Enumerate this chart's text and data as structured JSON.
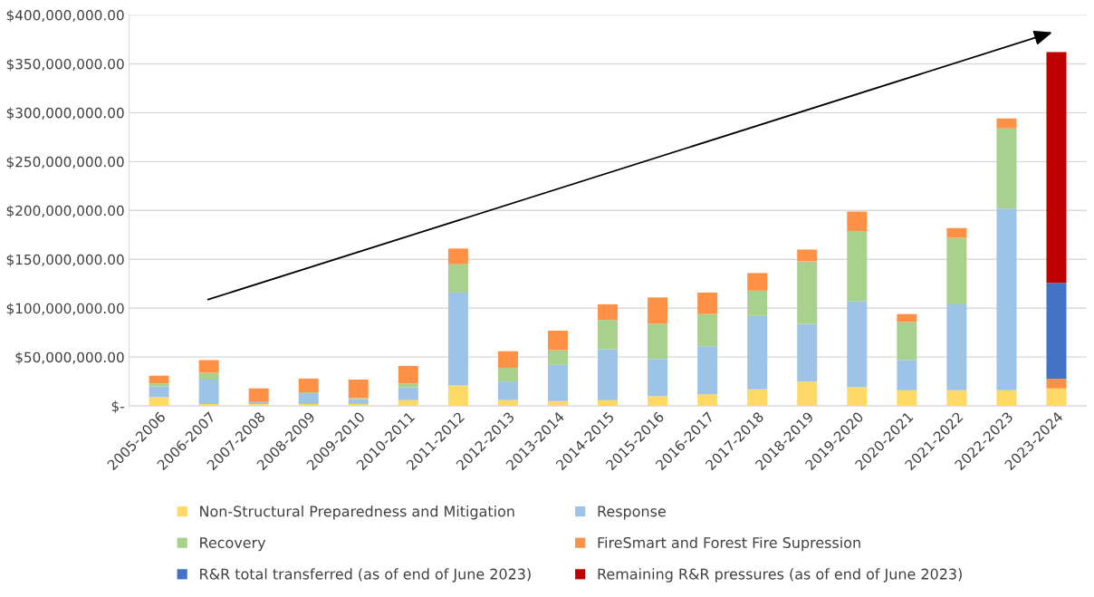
{
  "chart_data": {
    "type": "bar",
    "stacked": true,
    "categories": [
      "2005-2006",
      "2006-2007",
      "2007-2008",
      "2008-2009",
      "2009-2010",
      "2010-2011",
      "2011-2012",
      "2012-2013",
      "2013-2014",
      "2014-2015",
      "2015-2016",
      "2016-2017",
      "2017-2018",
      "2018-2019",
      "2019-2020",
      "2020-2021",
      "2021-2022",
      "2022-2023",
      "2023-2024"
    ],
    "series": [
      {
        "name": "Non-Structural Preparedness and Mitigation",
        "color": "#ffd966",
        "values": [
          9000000,
          2000000,
          2000000,
          2000000,
          2000000,
          6000000,
          21000000,
          6000000,
          5000000,
          6000000,
          10000000,
          12000000,
          17000000,
          25000000,
          19000000,
          16000000,
          16000000,
          16000000,
          18000000
        ]
      },
      {
        "name": "Response",
        "color": "#9dc3e6",
        "values": [
          11000000,
          25000000,
          2000000,
          11000000,
          5000000,
          13000000,
          95000000,
          19000000,
          37000000,
          52000000,
          38000000,
          49000000,
          75000000,
          59000000,
          88000000,
          31000000,
          88000000,
          186000000,
          0
        ]
      },
      {
        "name": "Recovery",
        "color": "#a9d18e",
        "values": [
          3000000,
          7000000,
          0,
          1000000,
          1000000,
          4000000,
          29000000,
          14000000,
          15000000,
          30000000,
          36000000,
          33000000,
          26000000,
          64000000,
          72000000,
          39000000,
          68000000,
          82000000,
          0
        ]
      },
      {
        "name": "FireSmart and Forest Fire Supression",
        "color": "#ff9147",
        "values": [
          8000000,
          13000000,
          14000000,
          14000000,
          19000000,
          18000000,
          16000000,
          17000000,
          20000000,
          16000000,
          27000000,
          22000000,
          18000000,
          12000000,
          20000000,
          8000000,
          10000000,
          10000000,
          10000000
        ]
      },
      {
        "name": "R&R total transferred (as of end of June 2023)",
        "color": "#4472c4",
        "values": [
          null,
          null,
          null,
          null,
          null,
          null,
          null,
          null,
          null,
          null,
          null,
          null,
          null,
          null,
          null,
          null,
          null,
          null,
          98000000
        ]
      },
      {
        "name": "Remaining R&R pressures (as of end of June 2023)",
        "color": "#c00000",
        "values": [
          null,
          null,
          null,
          null,
          null,
          null,
          null,
          null,
          null,
          null,
          null,
          null,
          null,
          null,
          null,
          null,
          null,
          null,
          236000000
        ]
      }
    ],
    "ylim": [
      0,
      400000000
    ],
    "yticks": [
      {
        "value": 0,
        "label": "$-"
      },
      {
        "value": 50000000,
        "label": "$50,000,000.00"
      },
      {
        "value": 100000000,
        "label": "$100,000,000.00"
      },
      {
        "value": 150000000,
        "label": "$150,000,000.00"
      },
      {
        "value": 200000000,
        "label": "$200,000,000.00"
      },
      {
        "value": 250000000,
        "label": "$250,000,000.00"
      },
      {
        "value": 300000000,
        "label": "$300,000,000.00"
      },
      {
        "value": 350000000,
        "label": "$350,000,000.00"
      },
      {
        "value": 400000000,
        "label": "$400,000,000.00"
      }
    ],
    "grid": "y",
    "legend": "bottom"
  }
}
